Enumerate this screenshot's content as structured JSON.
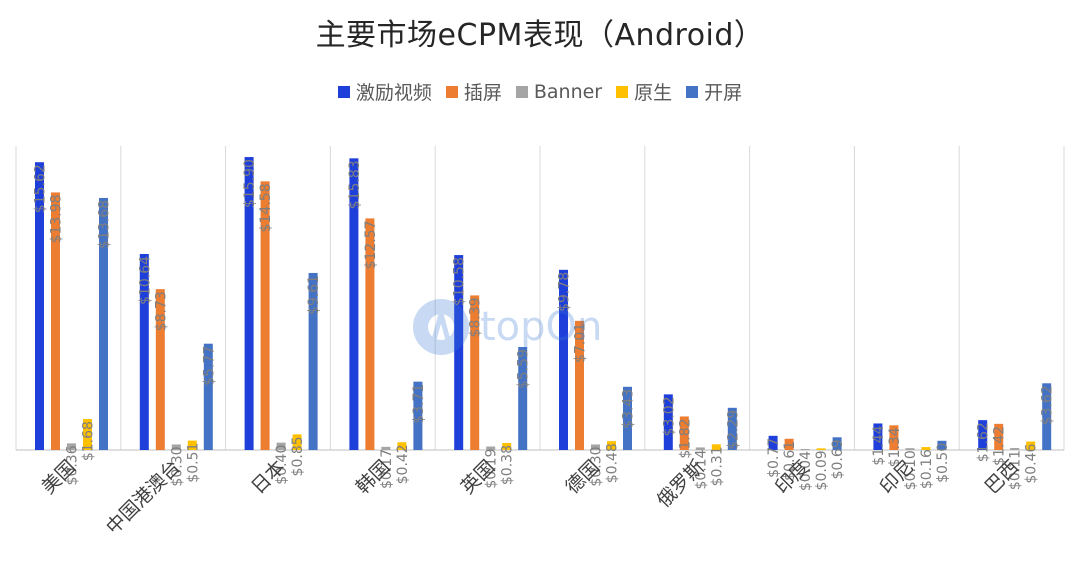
{
  "chart_data": {
    "type": "bar",
    "title": "主要市场eCPM表现（Android）",
    "categories": [
      "美国",
      "中国港澳台",
      "日本",
      "韩国",
      "英国",
      "德国",
      "俄罗斯",
      "印度",
      "印尼",
      "巴西"
    ],
    "series": [
      {
        "name": "激励视频",
        "color": "#1f3fdb",
        "values": [
          15.62,
          10.64,
          15.9,
          15.83,
          10.58,
          9.78,
          3.02,
          0.77,
          1.44,
          1.62
        ],
        "labels": [
          "$15.62",
          "$10.64",
          "$15.90",
          "$15.83",
          "$10.58",
          "$9.78",
          "$3.02",
          "$0.77",
          "$1.44",
          "$1.62"
        ]
      },
      {
        "name": "插屏",
        "color": "#ed7d31",
        "values": [
          13.98,
          8.73,
          14.58,
          12.57,
          8.39,
          7.01,
          1.82,
          0.61,
          1.34,
          1.42
        ],
        "labels": [
          "$13.98",
          "$8.73",
          "$14.58",
          "$12.57",
          "$8.39",
          "$7.01",
          "$1.82",
          "$0.61",
          "$1.34",
          "$1.42"
        ]
      },
      {
        "name": "Banner",
        "color": "#a5a5a5",
        "values": [
          0.36,
          0.3,
          0.4,
          0.17,
          0.19,
          0.3,
          0.14,
          0.04,
          0.1,
          0.11
        ],
        "labels": [
          "$0.36",
          "$0.30",
          "$0.40",
          "$0.17",
          "$0.19",
          "$0.30",
          "$0.14",
          "$0.04",
          "$0.10",
          "$0.11"
        ]
      },
      {
        "name": "原生",
        "color": "#ffc000",
        "values": [
          1.68,
          0.51,
          0.85,
          0.42,
          0.38,
          0.48,
          0.31,
          0.09,
          0.16,
          0.46
        ],
        "labels": [
          "$1.68",
          "$0.51",
          "$0.85",
          "$0.42",
          "$0.38",
          "$0.48",
          "$0.31",
          "$0.09",
          "$0.16",
          "$0.46"
        ]
      },
      {
        "name": "开屏",
        "color": "#4472c4",
        "values": [
          13.68,
          5.77,
          9.61,
          3.71,
          5.59,
          3.43,
          2.29,
          0.69,
          0.5,
          3.62
        ],
        "labels": [
          "$13.68",
          "$5.77",
          "$9.61",
          "$3.71",
          "$5.59",
          "$3.43",
          "$2.29",
          "$0.69",
          "$0.50",
          "$3.62"
        ]
      }
    ],
    "ylim": [
      0,
      16.5
    ],
    "legend": "top",
    "grid": "vertical category separators"
  },
  "watermark": {
    "text": "topOn",
    "color": "#3a7bd5"
  }
}
